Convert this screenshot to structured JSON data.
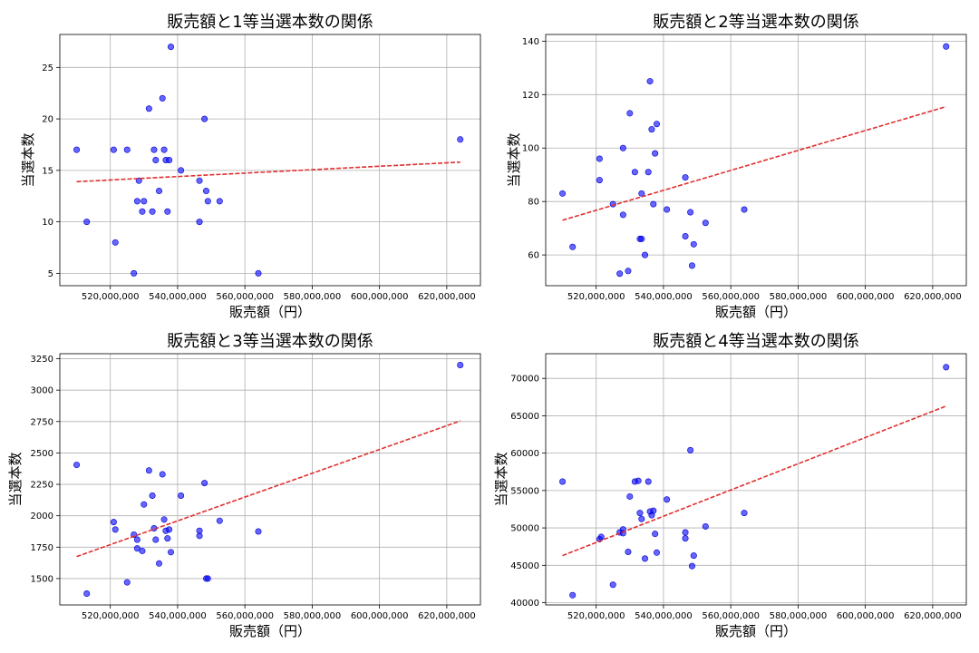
{
  "chart_data": [
    {
      "type": "scatter",
      "title": "販売額と1等当選本数の関係",
      "xlabel": "販売額（円）",
      "ylabel": "当選本数",
      "grid": true,
      "xlim": [
        505000000,
        630000000
      ],
      "ylim": [
        3.8,
        28.2
      ],
      "xticks": [
        520000000,
        540000000,
        560000000,
        580000000,
        600000000,
        620000000
      ],
      "xtick_labels": [
        "520,000,000",
        "540,000,000",
        "560,000,000",
        "580,000,000",
        "600,000,000",
        "620,000,000"
      ],
      "yticks": [
        5,
        10,
        15,
        20,
        25
      ],
      "ytick_labels": [
        "5",
        "10",
        "15",
        "20",
        "25"
      ],
      "points": [
        [
          510000000,
          17
        ],
        [
          513000000,
          10
        ],
        [
          521000000,
          17
        ],
        [
          521500000,
          8
        ],
        [
          525000000,
          17
        ],
        [
          527000000,
          5
        ],
        [
          528000000,
          12
        ],
        [
          528500000,
          14
        ],
        [
          529500000,
          11
        ],
        [
          530000000,
          12
        ],
        [
          531500000,
          21
        ],
        [
          532500000,
          11
        ],
        [
          533000000,
          17
        ],
        [
          533500000,
          16
        ],
        [
          534500000,
          13
        ],
        [
          535500000,
          22
        ],
        [
          536000000,
          17
        ],
        [
          536500000,
          16
        ],
        [
          537000000,
          11
        ],
        [
          537500000,
          16
        ],
        [
          538000000,
          27
        ],
        [
          541000000,
          15
        ],
        [
          546500000,
          10
        ],
        [
          546500000,
          14
        ],
        [
          548000000,
          20
        ],
        [
          548500000,
          13
        ],
        [
          549000000,
          12
        ],
        [
          552500000,
          12
        ],
        [
          564000000,
          5
        ],
        [
          624000000,
          18
        ]
      ],
      "trendline": {
        "x": [
          510000000,
          624000000
        ],
        "y": [
          13.9,
          15.8
        ]
      }
    },
    {
      "type": "scatter",
      "title": "販売額と2等当選本数の関係",
      "xlabel": "販売額（円）",
      "ylabel": "当選本数",
      "grid": true,
      "xlim": [
        505000000,
        630000000
      ],
      "ylim": [
        48.5,
        142.5
      ],
      "xticks": [
        520000000,
        540000000,
        560000000,
        580000000,
        600000000,
        620000000
      ],
      "xtick_labels": [
        "520,000,000",
        "540,000,000",
        "560,000,000",
        "580,000,000",
        "600,000,000",
        "620,000,000"
      ],
      "yticks": [
        60,
        80,
        100,
        120,
        140
      ],
      "ytick_labels": [
        "60",
        "80",
        "100",
        "120",
        "140"
      ],
      "points": [
        [
          510000000,
          83
        ],
        [
          513000000,
          63
        ],
        [
          521000000,
          96
        ],
        [
          521000000,
          88
        ],
        [
          525000000,
          79
        ],
        [
          527000000,
          53
        ],
        [
          528000000,
          100
        ],
        [
          528000000,
          75
        ],
        [
          529500000,
          54
        ],
        [
          530000000,
          113
        ],
        [
          531500000,
          91
        ],
        [
          533000000,
          66
        ],
        [
          533500000,
          66
        ],
        [
          533500000,
          83
        ],
        [
          534500000,
          60
        ],
        [
          535500000,
          91
        ],
        [
          536000000,
          125
        ],
        [
          536500000,
          107
        ],
        [
          537000000,
          79
        ],
        [
          537500000,
          98
        ],
        [
          538000000,
          109
        ],
        [
          541000000,
          77
        ],
        [
          546500000,
          67
        ],
        [
          546500000,
          89
        ],
        [
          548000000,
          76
        ],
        [
          548500000,
          56
        ],
        [
          549000000,
          64
        ],
        [
          552500000,
          72
        ],
        [
          564000000,
          77
        ],
        [
          624000000,
          138
        ]
      ],
      "trendline": {
        "x": [
          510000000,
          624000000
        ],
        "y": [
          73,
          115.5
        ]
      }
    },
    {
      "type": "scatter",
      "title": "販売額と3等当選本数の関係",
      "xlabel": "販売額（円）",
      "ylabel": "当選本数",
      "grid": true,
      "xlim": [
        505000000,
        630000000
      ],
      "ylim": [
        1290,
        3290
      ],
      "xticks": [
        520000000,
        540000000,
        560000000,
        580000000,
        600000000,
        620000000
      ],
      "xtick_labels": [
        "520,000,000",
        "540,000,000",
        "560,000,000",
        "580,000,000",
        "600,000,000",
        "620,000,000"
      ],
      "yticks": [
        1500,
        1750,
        2000,
        2250,
        2500,
        2750,
        3000,
        3250
      ],
      "ytick_labels": [
        "1500",
        "1750",
        "2000",
        "2250",
        "2500",
        "2750",
        "3000",
        "3250"
      ],
      "points": [
        [
          510000000,
          2405
        ],
        [
          513000000,
          1380
        ],
        [
          521000000,
          1950
        ],
        [
          521500000,
          1890
        ],
        [
          525000000,
          1470
        ],
        [
          527000000,
          1850
        ],
        [
          528000000,
          1810
        ],
        [
          528000000,
          1740
        ],
        [
          529500000,
          1720
        ],
        [
          530000000,
          2090
        ],
        [
          531500000,
          2360
        ],
        [
          532500000,
          2160
        ],
        [
          533000000,
          1900
        ],
        [
          533500000,
          1810
        ],
        [
          534500000,
          1620
        ],
        [
          535500000,
          2330
        ],
        [
          536000000,
          1970
        ],
        [
          536500000,
          1880
        ],
        [
          537000000,
          1820
        ],
        [
          537500000,
          1890
        ],
        [
          538000000,
          1710
        ],
        [
          541000000,
          2160
        ],
        [
          546500000,
          1880
        ],
        [
          546500000,
          1840
        ],
        [
          548000000,
          2260
        ],
        [
          548500000,
          1500
        ],
        [
          549000000,
          1500
        ],
        [
          552500000,
          1960
        ],
        [
          564000000,
          1875
        ],
        [
          624000000,
          3200
        ]
      ],
      "trendline": {
        "x": [
          510000000,
          624000000
        ],
        "y": [
          1675,
          2755
        ]
      }
    },
    {
      "type": "scatter",
      "title": "販売額と4等当選本数の関係",
      "xlabel": "販売額（円）",
      "ylabel": "当選本数",
      "grid": true,
      "xlim": [
        505000000,
        630000000
      ],
      "ylim": [
        39700,
        73300
      ],
      "xticks": [
        520000000,
        540000000,
        560000000,
        580000000,
        600000000,
        620000000
      ],
      "xtick_labels": [
        "520,000,000",
        "540,000,000",
        "560,000,000",
        "580,000,000",
        "600,000,000",
        "620,000,000"
      ],
      "yticks": [
        40000,
        45000,
        50000,
        55000,
        60000,
        65000,
        70000
      ],
      "ytick_labels": [
        "40000",
        "45000",
        "50000",
        "55000",
        "60000",
        "65000",
        "70000"
      ],
      "points": [
        [
          510000000,
          56200
        ],
        [
          513000000,
          41000
        ],
        [
          521000000,
          48500
        ],
        [
          521500000,
          48800
        ],
        [
          525000000,
          42400
        ],
        [
          527000000,
          49400
        ],
        [
          528000000,
          49800
        ],
        [
          528000000,
          49300
        ],
        [
          529500000,
          46800
        ],
        [
          530000000,
          54200
        ],
        [
          531500000,
          56200
        ],
        [
          532500000,
          56300
        ],
        [
          533000000,
          52000
        ],
        [
          533500000,
          51200
        ],
        [
          534500000,
          45900
        ],
        [
          535500000,
          56200
        ],
        [
          536000000,
          52200
        ],
        [
          536500000,
          51700
        ],
        [
          537000000,
          52300
        ],
        [
          537500000,
          49200
        ],
        [
          538000000,
          46700
        ],
        [
          541000000,
          53800
        ],
        [
          546500000,
          48600
        ],
        [
          546500000,
          49400
        ],
        [
          548000000,
          60400
        ],
        [
          548500000,
          44900
        ],
        [
          549000000,
          46300
        ],
        [
          552500000,
          50200
        ],
        [
          564000000,
          52000
        ],
        [
          624000000,
          71500
        ]
      ],
      "trendline": {
        "x": [
          510000000,
          624000000
        ],
        "y": [
          46300,
          66300
        ]
      }
    }
  ]
}
